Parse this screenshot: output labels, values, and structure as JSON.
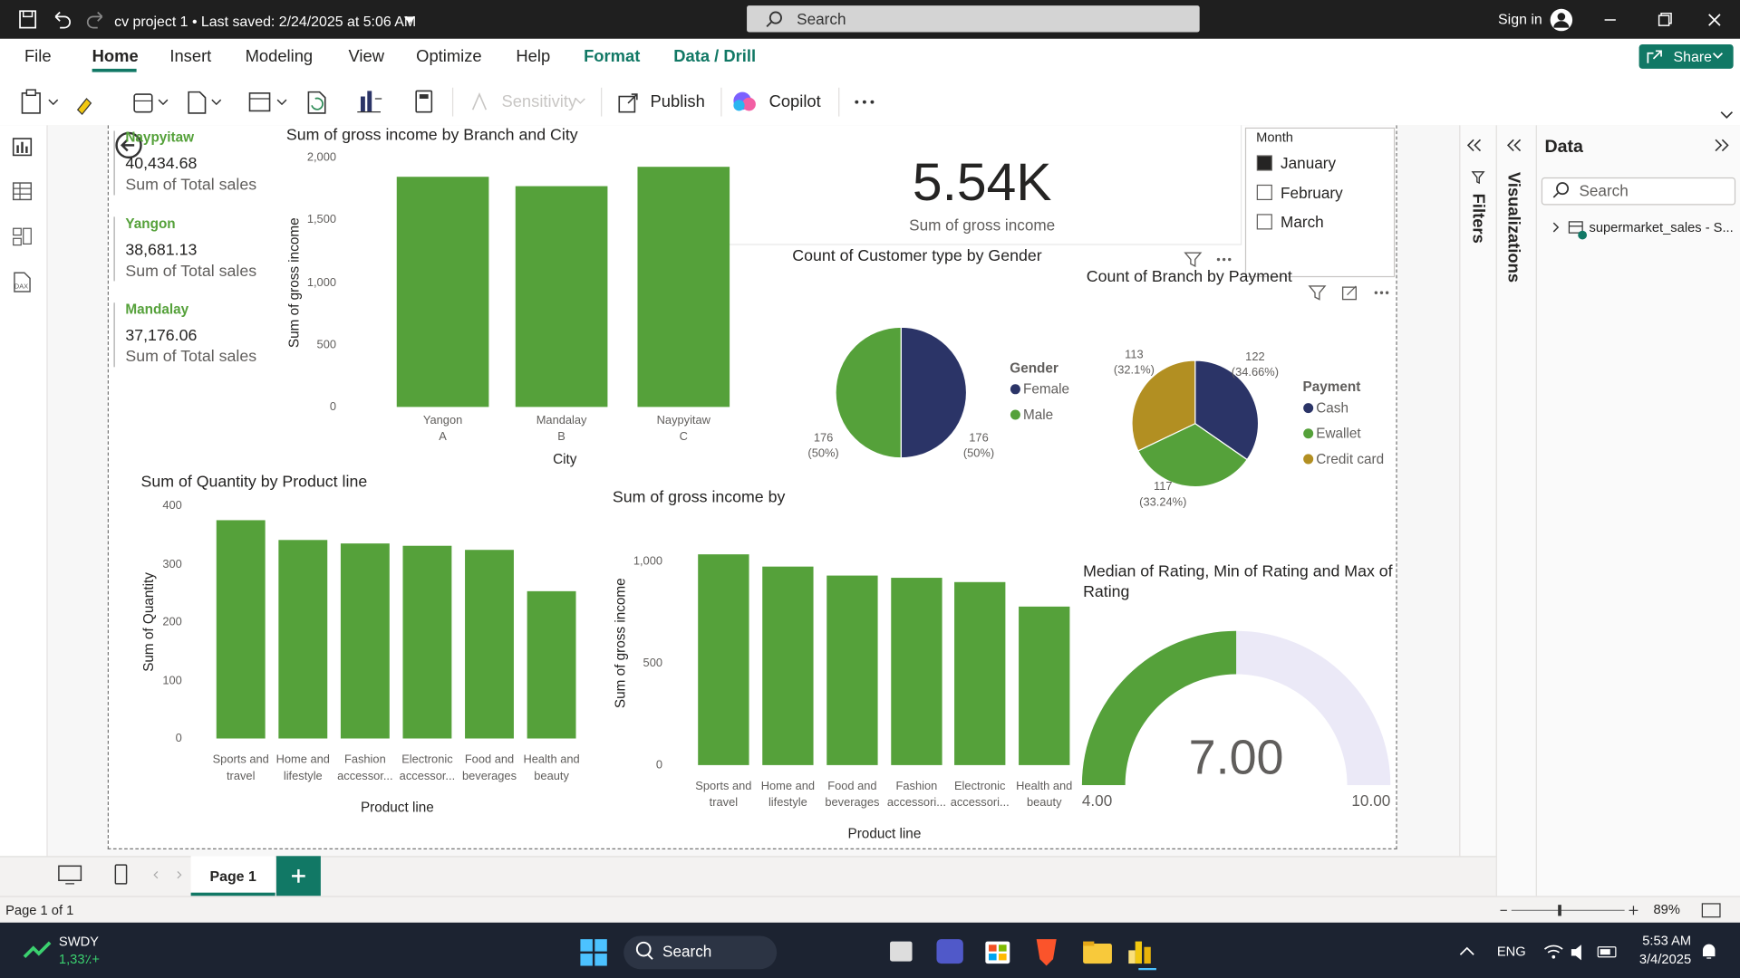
{
  "titlebar": {
    "title": "cv project 1 • Last saved: 2/24/2025 at 5:06 AM",
    "search": "Search",
    "sign_in": "Sign in"
  },
  "menu": {
    "tabs": [
      "File",
      "Home",
      "Insert",
      "Modeling",
      "View",
      "Optimize",
      "Help",
      "Format",
      "Data / Drill"
    ],
    "share": "Share"
  },
  "toolbar": {
    "sensitivity": "Sensitivity",
    "publish": "Publish",
    "copilot": "Copilot"
  },
  "cards": [
    {
      "label": "Naypyitaw",
      "value": "40,434.68",
      "caption": "Sum of Total sales"
    },
    {
      "label": "Yangon",
      "value": "38,681.13",
      "caption": "Sum of Total sales"
    },
    {
      "label": "Mandalay",
      "value": "37,176.06",
      "caption": "Sum of Total sales"
    }
  ],
  "kpi": {
    "value": "5.54K",
    "caption": "Sum of gross income"
  },
  "slicer": {
    "title": "Month",
    "items": [
      "January",
      "February",
      "March"
    ],
    "checked": [
      true,
      false,
      false
    ]
  },
  "charts": [
    {
      "type": "bar",
      "title": "Sum of gross income by Branch and City",
      "categories": [
        "Yangon",
        "Mandalay",
        "Naypyitaw"
      ],
      "sub_categories": [
        "A",
        "B",
        "C"
      ],
      "values": [
        1845,
        1770,
        1925
      ],
      "color": "#55a13a",
      "xlabel": "City",
      "ylabel": "Sum of gross income",
      "ylim": [
        0,
        2000
      ],
      "yticks": [
        0,
        500,
        {
          "value": 1000,
          "label": "1,000"
        },
        {
          "value": 1500,
          "label": "1,500"
        },
        {
          "value": 2000,
          "label": "2,000"
        }
      ]
    },
    {
      "type": "pie",
      "title": "Count of Customer type by Gender",
      "legend_title": "Gender",
      "categories": [
        "Female",
        "Male"
      ],
      "values": [
        176,
        176
      ],
      "percent_labels": [
        "(50%)",
        "(50%)"
      ],
      "colors": [
        "#2b3467",
        "#55a13a"
      ]
    },
    {
      "type": "pie",
      "title": "Count of Branch by Payment",
      "legend_title": "Payment",
      "categories": [
        "Cash",
        "Ewallet",
        "Credit card"
      ],
      "values": [
        122,
        117,
        113
      ],
      "percent_labels": [
        "(34.66%)",
        "(33.24%)",
        "(32.1%)"
      ],
      "colors": [
        "#2b3467",
        "#55a13a",
        "#b28f22"
      ]
    },
    {
      "type": "bar",
      "title": "Sum of Quantity by Product line",
      "categories": [
        "Sports and travel",
        "Home and lifestyle",
        "Fashion accessor...",
        "Electronic accessor...",
        "Food and beverages",
        "Health and beauty"
      ],
      "values": [
        375,
        341,
        335,
        331,
        324,
        253
      ],
      "color": "#55a13a",
      "xlabel": "Product line",
      "ylabel": "Sum of Quantity",
      "ylim": [
        0,
        400
      ],
      "yticks": [
        0,
        100,
        200,
        300,
        400
      ]
    },
    {
      "type": "bar",
      "title": "Sum of gross income by",
      "categories": [
        "Sports and travel",
        "Home and lifestyle",
        "Food and beverages",
        "Fashion accessori...",
        "Electronic accessori...",
        "Health and beauty"
      ],
      "values": [
        1033,
        973,
        929,
        918,
        897,
        777
      ],
      "color": "#55a13a",
      "xlabel": "Product line",
      "ylabel": "Sum of gross income",
      "ylim": [
        0,
        1100
      ],
      "yticks": [
        0,
        500,
        {
          "value": 1000,
          "label": "1,000"
        }
      ]
    },
    {
      "type": "gauge",
      "title": "Median of Rating, Min of Rating and Max of Rating",
      "value": 7,
      "value_label": "7.00",
      "min": 4,
      "min_label": "4.00",
      "max": 10,
      "max_label": "10.00",
      "color": "#55a13a",
      "track_color": "#ebe9f7"
    }
  ],
  "panes": {
    "filters": "Filters",
    "visualizations": "Visualizations",
    "data_title": "Data",
    "data_search": "Search",
    "table": "supermarket_sales - S..."
  },
  "pages": {
    "tab": "Page 1",
    "status": "Page 1 of 1",
    "zoom": "89%"
  },
  "taskbar": {
    "ticker": "SWDY",
    "change": "1,33٪+",
    "search": "Search",
    "language": "ENG",
    "time": "5:53 AM",
    "date": "3/4/2025"
  }
}
